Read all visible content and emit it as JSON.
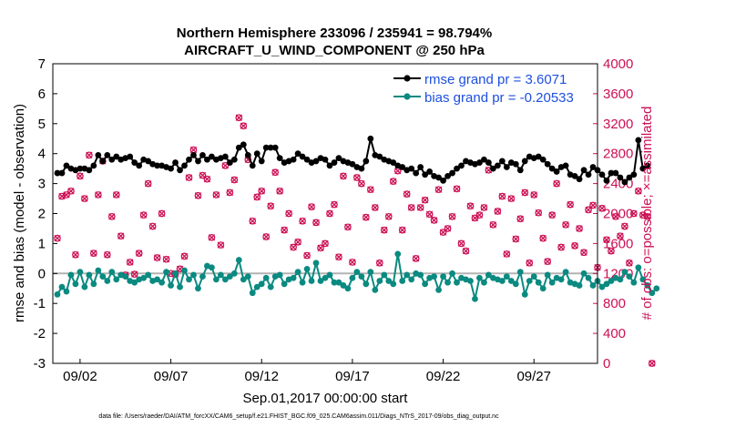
{
  "chart_data": {
    "type": "line",
    "title": "Northern Hemisphere 233096 / 235941 = 98.794%",
    "subtitle": "AIRCRAFT_U_WIND_COMPONENT @ 250 hPa",
    "xlabel": "Sep.01,2017 00:00:00 start",
    "ylabel": "rmse and bias (model - observation)",
    "y2label": "# of obs: o=possible; ×=assimilated",
    "footnote": "data file: /Users/raeder/DAI/ATM_forcXX/CAM6_setup/f.e21.FHIST_BGC.f09_025.CAM6assim.011/Diags_NTrS_2017-09/obs_diag_output.nc",
    "xlim": [
      0.5,
      30.5
    ],
    "ylim": [
      -3,
      7
    ],
    "y2lim": [
      0,
      4000
    ],
    "xticks": [
      2,
      7,
      12,
      17,
      22,
      27
    ],
    "xticklabels": [
      "09/02",
      "09/07",
      "09/12",
      "09/17",
      "09/22",
      "09/27"
    ],
    "yticks": [
      -3,
      -2,
      -1,
      0,
      1,
      2,
      3,
      4,
      5,
      6,
      7
    ],
    "yticklabels": [
      "-3",
      "-2",
      "-1",
      "0",
      "1",
      "2",
      "3",
      "4",
      "5",
      "6",
      "7"
    ],
    "y2ticks": [
      0,
      400,
      800,
      1200,
      1600,
      2000,
      2400,
      2800,
      3200,
      3600,
      4000
    ],
    "y2ticklabels": [
      "0",
      "400",
      "800",
      "1200",
      "1600",
      "2000",
      "2400",
      "2800",
      "3200",
      "3600",
      "4000"
    ],
    "zero_line": 0,
    "x_start": 0.75,
    "x_step": 0.25,
    "series": [
      {
        "name": "rmse grand pr = 3.6071",
        "color": "#000000",
        "axis": "left",
        "values": [
          3.35,
          3.35,
          3.6,
          3.5,
          3.45,
          3.5,
          3.5,
          3.45,
          3.6,
          3.95,
          3.75,
          3.95,
          3.8,
          3.9,
          3.8,
          3.85,
          3.9,
          3.7,
          3.6,
          3.8,
          3.75,
          3.65,
          3.6,
          3.6,
          3.55,
          3.5,
          3.7,
          3.45,
          3.6,
          3.8,
          3.95,
          3.75,
          3.95,
          3.8,
          3.9,
          3.8,
          3.85,
          3.9,
          3.7,
          3.8,
          4.2,
          4.3,
          3.95,
          3.6,
          4.0,
          3.75,
          4.2,
          4.2,
          4.2,
          3.85,
          3.7,
          3.75,
          3.8,
          4.0,
          3.9,
          3.8,
          3.7,
          3.75,
          3.85,
          3.8,
          3.6,
          3.7,
          3.85,
          3.75,
          3.7,
          3.65,
          3.55,
          3.5,
          3.75,
          4.5,
          3.95,
          3.9,
          3.8,
          3.75,
          3.7,
          3.6,
          3.55,
          3.45,
          3.5,
          3.35,
          3.55,
          3.3,
          3.4,
          3.25,
          3.2,
          3.1,
          3.25,
          3.35,
          3.5,
          3.6,
          3.75,
          3.7,
          3.65,
          3.7,
          3.8,
          3.7,
          3.5,
          3.6,
          3.75,
          3.55,
          3.7,
          3.65,
          3.45,
          3.75,
          3.9,
          3.85,
          3.9,
          3.8,
          3.65,
          3.5,
          3.4,
          3.55,
          3.6,
          3.3,
          3.25,
          3.15,
          3.45,
          3.3,
          3.55,
          3.45,
          3.3,
          3.1,
          3.35,
          3.35,
          3.2,
          3.05,
          3.2,
          3.3,
          4.45,
          3.5,
          3.6
        ]
      },
      {
        "name": "bias grand pr = -0.20533",
        "color": "#0a8a80",
        "axis": "left",
        "values": [
          -0.7,
          -0.45,
          -0.6,
          -0.05,
          -0.35,
          0.05,
          -0.45,
          -0.05,
          -0.35,
          0.1,
          -0.1,
          -0.25,
          0.05,
          -0.2,
          -0.05,
          -0.1,
          -0.25,
          -0.3,
          -0.2,
          -0.15,
          -0.05,
          -0.25,
          -0.2,
          -0.3,
          0.05,
          -0.4,
          0.0,
          -0.45,
          0.1,
          -0.2,
          -0.05,
          -0.5,
          -0.1,
          0.25,
          0.2,
          -0.2,
          -0.05,
          -0.2,
          -0.1,
          0.0,
          0.45,
          -0.2,
          -0.1,
          -0.65,
          -0.45,
          -0.35,
          -0.15,
          -0.45,
          -0.1,
          -0.05,
          -0.35,
          -0.2,
          -0.15,
          0.05,
          -0.3,
          0.15,
          -0.25,
          0.35,
          -0.25,
          -0.15,
          -0.05,
          -0.3,
          -0.3,
          -0.4,
          -0.5,
          -0.15,
          0.05,
          -0.1,
          -0.35,
          0.05,
          -0.55,
          -0.25,
          -0.05,
          -0.25,
          -0.35,
          0.65,
          -0.25,
          -0.05,
          -0.2,
          0.0,
          -0.05,
          -0.35,
          -0.15,
          -0.1,
          -0.55,
          -0.1,
          -0.3,
          0.0,
          -0.3,
          -0.15,
          -0.2,
          -0.25,
          -0.85,
          -0.15,
          -0.3,
          -0.05,
          -0.15,
          -0.2,
          -0.25,
          -0.1,
          -0.25,
          -0.35,
          0.05,
          -0.7,
          -0.25,
          -0.1,
          -0.3,
          -0.5,
          -0.05,
          -0.3,
          -0.15,
          -0.2,
          0.05,
          -0.3,
          -0.35,
          -0.4,
          0.0,
          -0.15,
          -0.4,
          -0.25,
          -0.45,
          -0.35,
          -0.25,
          -0.15,
          -0.2,
          0.05,
          -0.1,
          -0.3,
          0.2,
          -0.2,
          -0.4,
          -0.65,
          -0.5
        ]
      }
    ],
    "obs_count": {
      "color": "#cc1155",
      "axis": "right",
      "possible": [
        1670,
        2230,
        2250,
        2300,
        1450,
        2500,
        2200,
        2780,
        1470,
        2250,
        2700,
        1450,
        1960,
        2250,
        1700,
        1180,
        1350,
        1190,
        1470,
        1980,
        2400,
        1830,
        1410,
        2000,
        1390,
        1200,
        1190,
        1260,
        1430,
        2480,
        2850,
        2240,
        2510,
        2460,
        1680,
        2250,
        1580,
        2640,
        2280,
        2450,
        3280,
        3170,
        2720,
        1900,
        2220,
        2300,
        1690,
        2100,
        2550,
        2300,
        1780,
        2000,
        1550,
        1620,
        1900,
        1440,
        2090,
        1880,
        1540,
        1600,
        2000,
        2120,
        1420,
        2500,
        1820,
        1350,
        2480,
        2400,
        1950,
        2320,
        2080,
        1340,
        1780,
        1960,
        2430,
        2570,
        1780,
        2260,
        2080,
        1400,
        2080,
        2180,
        1990,
        1910,
        2320,
        1750,
        1800,
        1960,
        2330,
        1600,
        1500,
        2100,
        1940,
        1980,
        2080,
        2580,
        1850,
        2030,
        2230,
        1460,
        2200,
        1660,
        1930,
        2280,
        1340,
        2250,
        2010,
        1670,
        1360,
        1980,
        2400,
        1550,
        1850,
        2120,
        1570,
        1800,
        1480,
        2050,
        2110,
        1280,
        2070,
        1650,
        1500,
        1960,
        1700,
        1830,
        1340,
        2000,
        2300,
        1980,
        1960,
        0
      ]
    }
  }
}
